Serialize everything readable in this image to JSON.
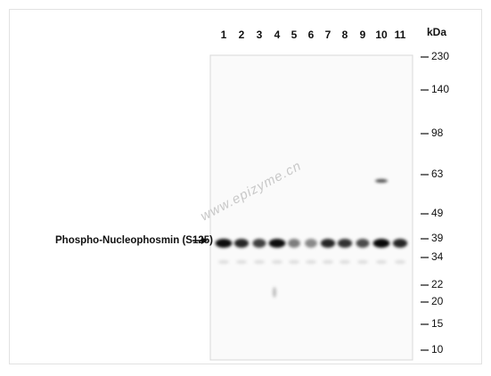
{
  "lanes": [
    "1",
    "2",
    "3",
    "4",
    "5",
    "6",
    "7",
    "8",
    "9",
    "10",
    "11"
  ],
  "unit": "kDa",
  "markers": [
    "230",
    "140",
    "98",
    "63",
    "49",
    "39",
    "34",
    "22",
    "20",
    "15",
    "10"
  ],
  "band_label": "Phospho-Nucleophosmin (S125)",
  "watermark": "www.epizyme.cn"
}
